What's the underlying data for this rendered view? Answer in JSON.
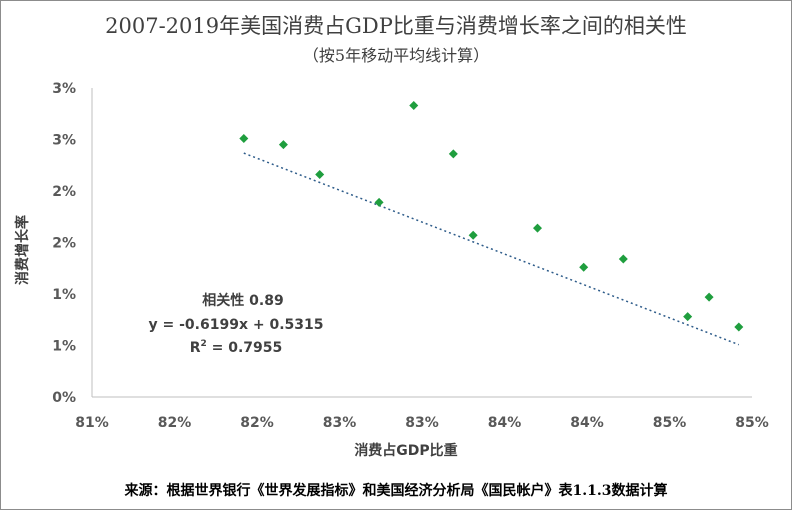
{
  "chart_data": {
    "type": "scatter",
    "title": "2007-2019年美国消费占GDP比重与消费增长率之间的相关性",
    "subtitle": "（按5年移动平均线计算）",
    "xlabel": "消费占GDP比重",
    "ylabel": "消费增长率",
    "xlim": [
      0.81,
      0.85
    ],
    "ylim": [
      0.0,
      0.03
    ],
    "x_tick_values": [
      0.81,
      0.815,
      0.82,
      0.825,
      0.83,
      0.835,
      0.84,
      0.845,
      0.85
    ],
    "x_tick_labels": [
      "81%",
      "82%",
      "82%",
      "83%",
      "83%",
      "84%",
      "84%",
      "85%",
      "85%"
    ],
    "y_tick_values": [
      0.0,
      0.005,
      0.01,
      0.015,
      0.02,
      0.025,
      0.03
    ],
    "y_tick_labels": [
      "0%",
      "1%",
      "1%",
      "2%",
      "2%",
      "3%",
      "3%"
    ],
    "grid": false,
    "legend": "none",
    "marker_color": "#1f9e3e",
    "trendline_color": "#2e5c8a",
    "points": [
      {
        "x": 0.8192,
        "y": 0.0251
      },
      {
        "x": 0.8216,
        "y": 0.0245
      },
      {
        "x": 0.8238,
        "y": 0.0216
      },
      {
        "x": 0.8274,
        "y": 0.0189
      },
      {
        "x": 0.8295,
        "y": 0.0283
      },
      {
        "x": 0.8319,
        "y": 0.0236
      },
      {
        "x": 0.8331,
        "y": 0.0157
      },
      {
        "x": 0.837,
        "y": 0.0164
      },
      {
        "x": 0.8398,
        "y": 0.0126
      },
      {
        "x": 0.8422,
        "y": 0.0134
      },
      {
        "x": 0.8461,
        "y": 0.0078
      },
      {
        "x": 0.8474,
        "y": 0.0097
      },
      {
        "x": 0.8492,
        "y": 0.0068
      }
    ],
    "trendline": {
      "slope": -0.6199,
      "intercept": 0.5315,
      "x_start": 0.8192,
      "x_end": 0.8492
    },
    "annotation": {
      "line1": "相关性 0.89",
      "line2": "y = -0.6199x + 0.5315",
      "line3_prefix": "R",
      "line3_sup": "2",
      "line3_suffix": " = 0.7955"
    }
  },
  "source": "来源：根据世界银行《世界发展指标》和美国经济分析局《国民帐户》表1.1.3数据计算"
}
